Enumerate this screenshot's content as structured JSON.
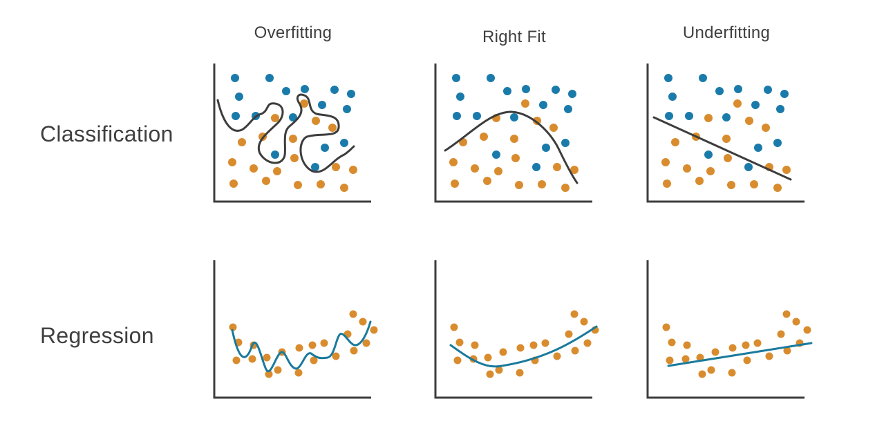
{
  "columns": [
    "Overfitting",
    "Right Fit",
    "Underfitting"
  ],
  "rows": [
    "Classification",
    "Regression"
  ],
  "colors": {
    "class_a": "#1a7bab",
    "class_b": "#d98c2e",
    "classification_boundary": "#3d3d3d",
    "regression_line": "#1a7a9c",
    "axes": "#3d3d3d"
  },
  "classification": {
    "blue_points": [
      [
        340,
        113
      ],
      [
        390,
        113
      ],
      [
        346,
        140
      ],
      [
        414,
        132
      ],
      [
        441,
        129
      ],
      [
        484,
        130
      ],
      [
        508,
        136
      ],
      [
        341,
        168
      ],
      [
        370,
        168
      ],
      [
        424,
        170
      ],
      [
        466,
        152
      ],
      [
        502,
        158
      ],
      [
        398,
        224
      ],
      [
        470,
        214
      ],
      [
        498,
        207
      ],
      [
        456,
        242
      ]
    ],
    "orange_points": [
      [
        398,
        171
      ],
      [
        440,
        150
      ],
      [
        457,
        175
      ],
      [
        481,
        185
      ],
      [
        350,
        206
      ],
      [
        380,
        198
      ],
      [
        424,
        201
      ],
      [
        336,
        235
      ],
      [
        367,
        244
      ],
      [
        401,
        248
      ],
      [
        426,
        229
      ],
      [
        486,
        242
      ],
      [
        511,
        246
      ],
      [
        338,
        266
      ],
      [
        385,
        262
      ],
      [
        431,
        268
      ],
      [
        464,
        267
      ],
      [
        498,
        272
      ]
    ],
    "boundaries": [
      "M315,145 C322,175 334,195 350,188 C360,183 366,168 378,165 C390,160 384,148 398,150 C412,152 412,168 402,178 C390,190 368,205 376,222 C385,238 408,242 412,225 C414,210 408,190 420,182 C432,172 442,162 432,148 C428,140 432,135 440,138 C452,142 444,160 458,165 C470,168 492,165 490,185 C488,200 462,192 444,198 C430,205 432,238 452,248 C470,254 480,232 498,224 C504,220 508,216 512,212",
      "M644,218 C680,195 708,162 740,162 C772,164 798,195 808,215 C820,240 828,255 835,265",
      "M946,170 L1144,260"
    ]
  },
  "regression": {
    "points": [
      [
        337,
        474
      ],
      [
        345,
        496
      ],
      [
        342,
        522
      ],
      [
        367,
        500
      ],
      [
        365,
        520
      ],
      [
        386,
        518
      ],
      [
        389,
        542
      ],
      [
        402,
        536
      ],
      [
        408,
        510
      ],
      [
        433,
        504
      ],
      [
        432,
        540
      ],
      [
        452,
        500
      ],
      [
        454,
        522
      ],
      [
        469,
        497
      ],
      [
        486,
        516
      ],
      [
        503,
        484
      ],
      [
        511,
        455
      ],
      [
        512,
        508
      ],
      [
        525,
        466
      ],
      [
        530,
        497
      ],
      [
        541,
        478
      ]
    ],
    "curves": [
      "M336,478 C345,520 355,530 365,500 C372,485 378,520 385,535 C392,548 400,510 408,510 C414,510 418,532 428,534 C436,535 442,508 450,512 C458,518 462,520 474,518 C484,516 486,490 492,484 C498,480 506,500 514,500 C524,500 532,480 536,466",
      "M652,500 C680,520 702,535 726,530 C790,520 830,495 863,473",
      "M967,530 L1174,497"
    ]
  }
}
